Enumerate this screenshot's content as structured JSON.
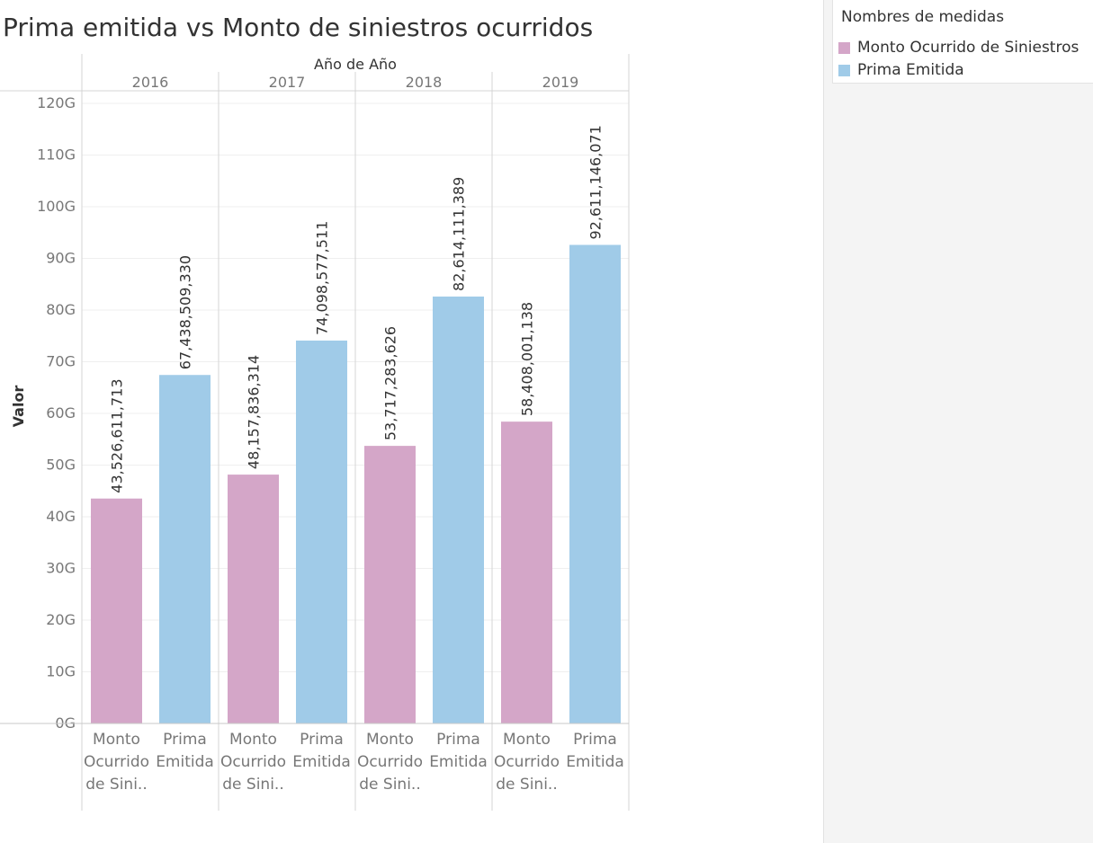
{
  "page": {
    "title": "Prima emitida vs Monto de siniestros ocurridos"
  },
  "legend": {
    "title": "Nombres de medidas",
    "items": [
      {
        "label": "Monto Ocurrido de Siniestros",
        "color": "#d4a6c8",
        "icon": "legend-swatch"
      },
      {
        "label": "Prima Emitida",
        "color": "#a0cbe8",
        "icon": "legend-swatch"
      }
    ]
  },
  "chart_data": {
    "type": "bar",
    "title": "Prima emitida vs Monto de siniestros ocurridos",
    "column_header": "Año de Año",
    "ylabel": "Valor",
    "ylim": [
      0,
      120000000000
    ],
    "yticks": [
      {
        "value": 0,
        "label": "0G"
      },
      {
        "value": 10000000000,
        "label": "10G"
      },
      {
        "value": 20000000000,
        "label": "20G"
      },
      {
        "value": 30000000000,
        "label": "30G"
      },
      {
        "value": 40000000000,
        "label": "40G"
      },
      {
        "value": 50000000000,
        "label": "50G"
      },
      {
        "value": 60000000000,
        "label": "60G"
      },
      {
        "value": 70000000000,
        "label": "70G"
      },
      {
        "value": 80000000000,
        "label": "80G"
      },
      {
        "value": 90000000000,
        "label": "90G"
      },
      {
        "value": 100000000000,
        "label": "100G"
      },
      {
        "value": 110000000000,
        "label": "110G"
      },
      {
        "value": 120000000000,
        "label": "120G"
      }
    ],
    "grid": true,
    "legend_position": "top-right",
    "categories": [
      "2016",
      "2017",
      "2018",
      "2019"
    ],
    "bar_labels": [
      [
        "Monto",
        "Ocurrido",
        "de Sini.."
      ],
      [
        "Prima",
        "Emitida"
      ]
    ],
    "series": [
      {
        "name": "Monto Ocurrido de Siniestros",
        "color": "#d4a6c8",
        "values": [
          43526611713,
          48157836314,
          53717283626,
          58408001138
        ],
        "labels": [
          "43,526,611,713",
          "48,157,836,314",
          "53,717,283,626",
          "58,408,001,138"
        ]
      },
      {
        "name": "Prima Emitida",
        "color": "#a0cbe8",
        "values": [
          67438509330,
          74098577511,
          82614111389,
          92611146071
        ],
        "labels": [
          "67,438,509,330",
          "74,098,577,511",
          "82,614,111,389",
          "92,611,146,071"
        ]
      }
    ]
  }
}
